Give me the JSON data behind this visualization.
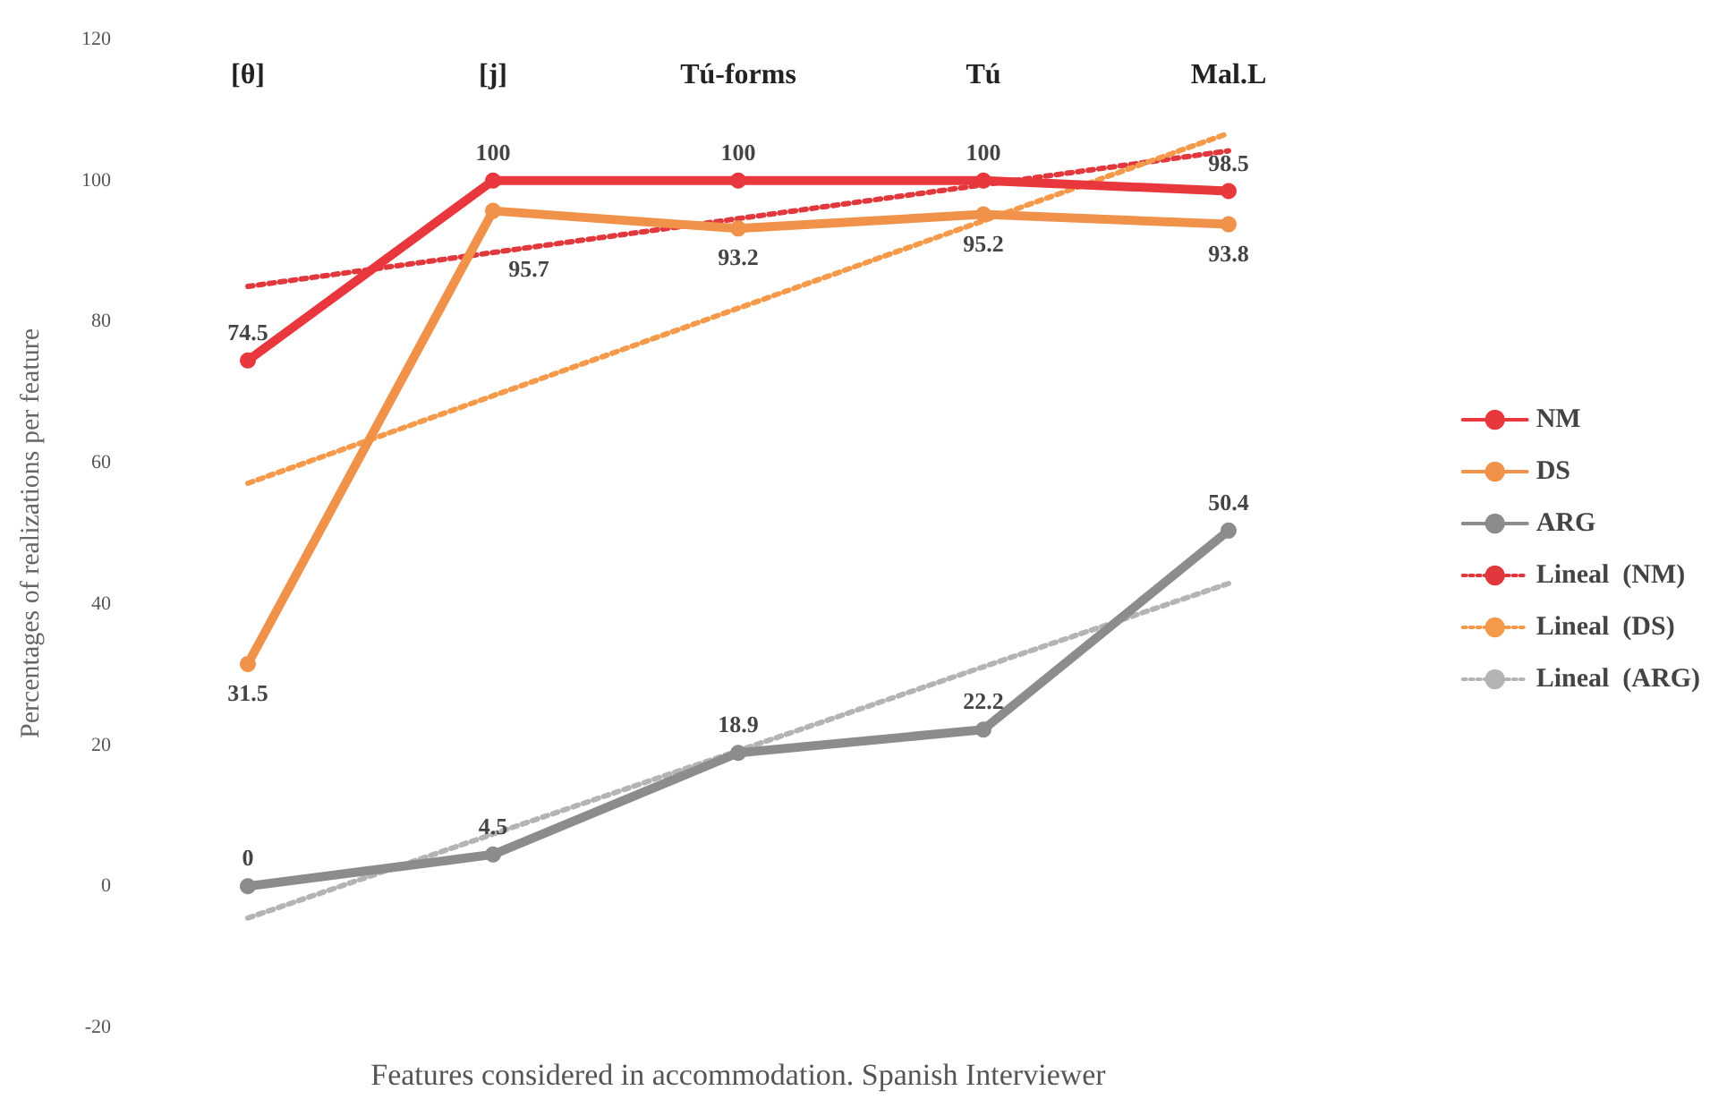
{
  "chart_data": {
    "type": "line",
    "xlabel": "Features considered in accommodation. Spanish Interviewer",
    "ylabel": "Percentages of realizations per feature",
    "categories": [
      "[θ]",
      "[j]",
      "Tú-forms",
      "Tú",
      "Mal.L"
    ],
    "series": [
      {
        "name": "NM",
        "color": "#e8383d",
        "values": [
          74.5,
          100,
          100,
          100,
          98.5
        ],
        "value_labels": [
          "74.5",
          "100",
          "100",
          "100",
          "98.5"
        ]
      },
      {
        "name": "DS",
        "color": "#f0924a",
        "values": [
          31.5,
          95.7,
          93.2,
          95.2,
          93.8
        ],
        "value_labels": [
          "31.5",
          "95.7",
          "93.2",
          "95.2",
          "93.8"
        ]
      },
      {
        "name": "ARG",
        "color": "#8c8c8c",
        "values": [
          0,
          4.5,
          18.9,
          22.2,
          50.4
        ],
        "value_labels": [
          "0",
          "4.5",
          "18.9",
          "22.2",
          "50.4"
        ]
      },
      {
        "name": "Lineal  (NM)",
        "color": "#e0383d",
        "values": [
          85.0,
          89.8,
          94.6,
          99.4,
          104.2
        ],
        "marker": "none",
        "line_style": "dotted"
      },
      {
        "name": "Lineal  (DS)",
        "color": "#f59a4a",
        "values": [
          57.1,
          69.5,
          81.9,
          94.3,
          106.7
        ],
        "marker": "none",
        "line_style": "dotted"
      },
      {
        "name": "Lineal  (ARG)",
        "color": "#b4b4b4",
        "values": [
          -4.5,
          7.4,
          19.2,
          31.1,
          42.9
        ],
        "marker": "none",
        "line_style": "dotted"
      }
    ],
    "ylim": [
      -20,
      120
    ],
    "yticks": [
      -20,
      0,
      20,
      40,
      60,
      80,
      100,
      120
    ],
    "marker": "circle",
    "line_style": "solid",
    "grid": false,
    "legend": "right"
  }
}
